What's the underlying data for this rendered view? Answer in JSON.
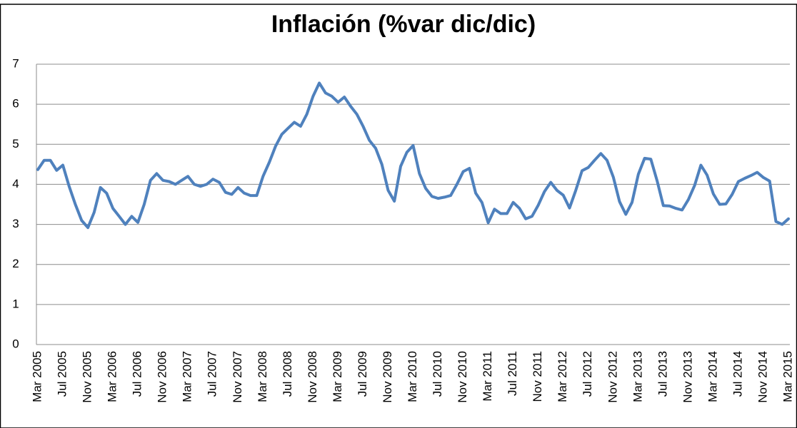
{
  "chart_data": {
    "type": "line",
    "title": "Inflación (%var dic/dic)",
    "categories": [
      "Mar 2005",
      null,
      null,
      null,
      "Jul 2005",
      null,
      null,
      null,
      "Nov 2005",
      null,
      null,
      null,
      "Mar 2006",
      null,
      null,
      null,
      "Jul 2006",
      null,
      null,
      null,
      "Nov 2006",
      null,
      null,
      null,
      "Mar 2007",
      null,
      null,
      null,
      "Jul 2007",
      null,
      null,
      null,
      "Nov 2007",
      null,
      null,
      null,
      "Mar 2008",
      null,
      null,
      null,
      "Jul 2008",
      null,
      null,
      null,
      "Nov 2008",
      null,
      null,
      null,
      "Mar 2009",
      null,
      null,
      null,
      "Jul 2009",
      null,
      null,
      null,
      "Nov 2009",
      null,
      null,
      null,
      "Mar 2010",
      null,
      null,
      null,
      "Jul 2010",
      null,
      null,
      null,
      "Nov 2010",
      null,
      null,
      null,
      "Mar 2011",
      null,
      null,
      null,
      "Jul 2011",
      null,
      null,
      null,
      "Nov 2011",
      null,
      null,
      null,
      "Mar 2012",
      null,
      null,
      null,
      "Jul 2012",
      null,
      null,
      null,
      "Nov 2012",
      null,
      null,
      null,
      "Mar 2013",
      null,
      null,
      null,
      "Jul 2013",
      null,
      null,
      null,
      "Nov 2013",
      null,
      null,
      null,
      "Mar 2014",
      null,
      null,
      null,
      "Jul 2014",
      null,
      null,
      null,
      "Nov 2014",
      null,
      null,
      null,
      "Mar 2015"
    ],
    "values": [
      4.37,
      4.6,
      4.6,
      4.35,
      4.48,
      3.95,
      3.5,
      3.1,
      2.92,
      3.3,
      3.92,
      3.78,
      3.4,
      3.2,
      3.0,
      3.2,
      3.05,
      3.5,
      4.1,
      4.27,
      4.1,
      4.07,
      4.0,
      4.1,
      4.2,
      4.0,
      3.95,
      4.0,
      4.13,
      4.05,
      3.8,
      3.75,
      3.92,
      3.78,
      3.72,
      3.72,
      4.2,
      4.55,
      4.95,
      5.25,
      5.4,
      5.55,
      5.45,
      5.75,
      6.2,
      6.53,
      6.28,
      6.2,
      6.05,
      6.18,
      5.95,
      5.75,
      5.45,
      5.1,
      4.9,
      4.5,
      3.85,
      3.58,
      4.45,
      4.8,
      4.97,
      4.27,
      3.9,
      3.7,
      3.65,
      3.68,
      3.72,
      4.0,
      4.32,
      4.4,
      3.78,
      3.55,
      3.04,
      3.38,
      3.27,
      3.27,
      3.55,
      3.4,
      3.14,
      3.2,
      3.48,
      3.82,
      4.05,
      3.85,
      3.73,
      3.41,
      3.85,
      4.34,
      4.42,
      4.6,
      4.77,
      4.6,
      4.18,
      3.57,
      3.25,
      3.55,
      4.25,
      4.65,
      4.63,
      4.09,
      3.47,
      3.46,
      3.4,
      3.36,
      3.62,
      3.97,
      4.48,
      4.23,
      3.76,
      3.5,
      3.51,
      3.75,
      4.07,
      4.15,
      4.22,
      4.3,
      4.17,
      4.08,
      3.07,
      3.0,
      3.14
    ],
    "color": "#4f81bd",
    "ylim": [
      0,
      7
    ],
    "yticks": [
      0,
      1,
      2,
      3,
      4,
      5,
      6,
      7
    ],
    "grid": true
  }
}
